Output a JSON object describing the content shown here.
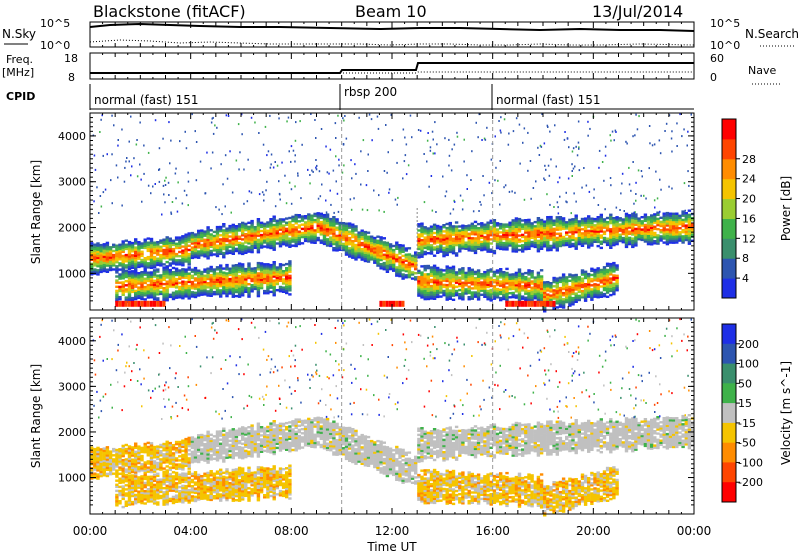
{
  "header": {
    "station": "Blackstone (fitACF)",
    "beam": "Beam 10",
    "date": "13/Jul/2014"
  },
  "labels": {
    "nsky": "N.Sky",
    "nsearch": "N.Search",
    "freq_line1": "Freq.",
    "freq_line2": "[MHz]",
    "nave": "Nave",
    "cpid": "CPID",
    "xlabel": "Time UT",
    "ylabel": "Slant Range [km]"
  },
  "top_ticks": {
    "noise_left": [
      "10^5",
      "10^0"
    ],
    "noise_right": [
      "10^5",
      "10^0"
    ],
    "freq_left": [
      "18",
      "8"
    ],
    "nave_right": [
      "60",
      "0"
    ]
  },
  "cpid_segments": [
    {
      "label": "normal (fast) 151",
      "start_hour": 0
    },
    {
      "label": "rbsp 200",
      "start_hour": 10
    },
    {
      "label": "normal (fast) 151",
      "start_hour": 16
    }
  ],
  "chart_data": [
    {
      "type": "heatmap",
      "panel": "power",
      "x_label": "Time UT",
      "y_label": "Slant Range [km]",
      "x_ticks": [
        "00:00",
        "04:00",
        "08:00",
        "12:00",
        "16:00",
        "20:00",
        "00:00"
      ],
      "y_ticks": [
        1000,
        2000,
        3000,
        4000
      ],
      "xlim_hours": [
        0,
        24
      ],
      "ylim_km": [
        200,
        4500
      ],
      "colorbar": {
        "label": "Power [dB]",
        "ticks": [
          4,
          8,
          12,
          16,
          20,
          24,
          28
        ],
        "colors": [
          "#1e2fe6",
          "#2d55b0",
          "#3a8f6d",
          "#3fb24a",
          "#9acd32",
          "#f5c400",
          "#ff8c00",
          "#ff4500",
          "#ff0000"
        ]
      },
      "echo_bands": [
        {
          "t_start": 0,
          "t_end": 4,
          "range_start_km": 1300,
          "range_end_km": 1500
        },
        {
          "t_start": 4,
          "t_end": 9,
          "range_start_km": 1600,
          "range_end_km": 2000
        },
        {
          "t_start": 9,
          "t_end": 13,
          "range_start_km": 2000,
          "range_end_km": 1100
        },
        {
          "t_start": 13,
          "t_end": 16,
          "range_start_km": 1700,
          "range_end_km": 1800
        },
        {
          "t_start": 16,
          "t_end": 20,
          "range_start_km": 1800,
          "range_end_km": 1900
        },
        {
          "t_start": 20,
          "t_end": 24,
          "range_start_km": 1900,
          "range_end_km": 2000
        },
        {
          "t_start": 1,
          "t_end": 8,
          "range_start_km": 700,
          "range_end_km": 900
        },
        {
          "t_start": 13,
          "t_end": 18,
          "range_start_km": 800,
          "range_end_km": 700
        },
        {
          "t_start": 18,
          "t_end": 21,
          "range_start_km": 500,
          "range_end_km": 900
        }
      ]
    },
    {
      "type": "heatmap",
      "panel": "velocity",
      "x_label": "Time UT",
      "y_label": "Slant Range [km]",
      "x_ticks": [
        "00:00",
        "04:00",
        "08:00",
        "12:00",
        "16:00",
        "20:00",
        "00:00"
      ],
      "y_ticks": [
        1000,
        2000,
        3000,
        4000
      ],
      "xlim_hours": [
        0,
        24
      ],
      "ylim_km": [
        200,
        4500
      ],
      "colorbar": {
        "label": "Velocity [m s^-1]",
        "ticks": [
          200,
          100,
          50,
          15,
          -15,
          -50,
          -100,
          -200
        ],
        "colors": [
          "#1e2fe6",
          "#2d55b0",
          "#3a8f6d",
          "#3fb24a",
          "#c0c0c0",
          "#f5c400",
          "#ff8c00",
          "#ff4500",
          "#ff0000"
        ]
      },
      "ground_scatter_color": "#c0c0c0"
    }
  ]
}
